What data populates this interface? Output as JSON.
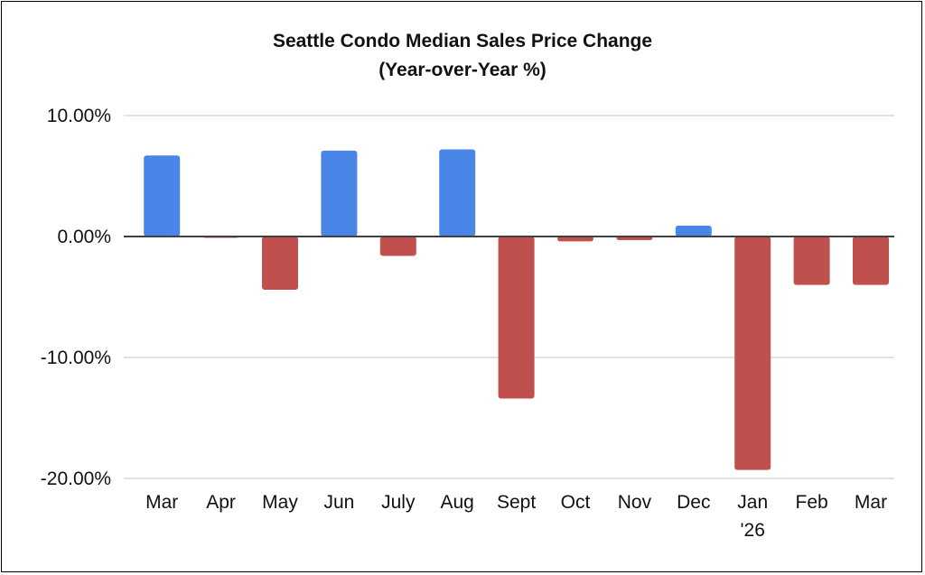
{
  "chart_data": {
    "type": "bar",
    "title": "Seattle Condo Median Sales Price Change",
    "subtitle": "(Year-over-Year %)",
    "categories": [
      "Mar",
      "Apr",
      "May",
      "Jun",
      "July",
      "Aug",
      "Sept",
      "Oct",
      "Nov",
      "Dec",
      "Jan '26",
      "Feb",
      "Mar"
    ],
    "values": [
      6.7,
      -0.1,
      -4.4,
      7.1,
      -1.6,
      7.2,
      -13.4,
      -0.4,
      -0.3,
      0.9,
      -19.3,
      -4.0,
      -4.0
    ],
    "unit": "%",
    "ylim": [
      -20,
      10
    ],
    "yticks": [
      "10.00%",
      "0.00%",
      "-10.00%",
      "-20.00%"
    ],
    "ytick_values": [
      10,
      0,
      -10,
      -20
    ],
    "grid": true,
    "legend": "none",
    "colors": {
      "positive": "#4a86e8",
      "negative": "#c0504d",
      "grid": "#d9d9d9",
      "zero_line": "#404040"
    }
  }
}
